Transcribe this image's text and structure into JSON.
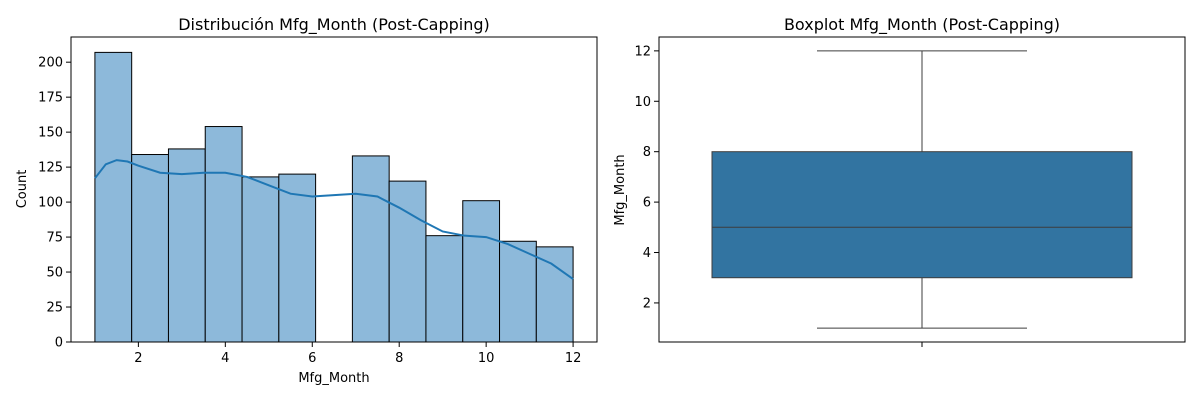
{
  "chart_data": [
    {
      "type": "bar",
      "title": "Distribución Mfg_Month (Post-Capping)",
      "xlabel": "Mfg_Month",
      "ylabel": "Count",
      "xlim": [
        0.45,
        12.55
      ],
      "ylim": [
        0,
        218
      ],
      "xticks": [
        "2",
        "4",
        "6",
        "8",
        "10",
        "12"
      ],
      "yticks": [
        "0",
        "25",
        "50",
        "75",
        "100",
        "125",
        "150",
        "175",
        "200"
      ],
      "bin_edges": [
        1,
        1.846,
        2.692,
        3.538,
        4.385,
        5.231,
        6.077,
        6.923,
        7.769,
        8.615,
        9.462,
        10.308,
        11.154,
        12
      ],
      "values": [
        207,
        134,
        138,
        154,
        118,
        120,
        0,
        133,
        115,
        76,
        101,
        72,
        68
      ],
      "kde": {
        "x": [
          1,
          1.25,
          1.5,
          1.75,
          2,
          2.5,
          3,
          3.5,
          4,
          4.5,
          5,
          5.5,
          6,
          6.5,
          7,
          7.5,
          8,
          8.5,
          9,
          9.5,
          10,
          10.5,
          11,
          11.5,
          12
        ],
        "y": [
          117,
          127,
          130,
          129,
          126,
          121,
          120,
          121,
          121,
          118,
          112,
          106,
          104,
          105,
          106,
          104,
          96,
          87,
          79,
          76,
          75,
          70,
          63,
          56,
          45
        ]
      },
      "colors": {
        "bar": "#8db9da",
        "edge": "#000000",
        "kde": "#1f77b4"
      }
    },
    {
      "type": "boxplot",
      "title": "Boxplot Mfg_Month (Post-Capping)",
      "xlabel": "",
      "ylabel": "Mfg_Month",
      "ylim": [
        0.45,
        12.55
      ],
      "yticks": [
        "2",
        "4",
        "6",
        "8",
        "10",
        "12"
      ],
      "stats": {
        "whislo": 1,
        "q1": 3,
        "median": 5,
        "q3": 8,
        "whishi": 12
      },
      "colors": {
        "box": "#3274a1",
        "line": "#3d3d3d"
      }
    }
  ]
}
